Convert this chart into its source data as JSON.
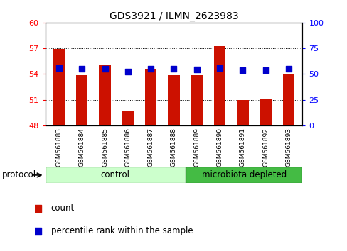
{
  "title": "GDS3921 / ILMN_2623983",
  "samples": [
    "GSM561883",
    "GSM561884",
    "GSM561885",
    "GSM561886",
    "GSM561887",
    "GSM561888",
    "GSM561889",
    "GSM561890",
    "GSM561891",
    "GSM561892",
    "GSM561893"
  ],
  "count_values": [
    56.9,
    53.9,
    55.1,
    49.7,
    54.6,
    53.9,
    53.9,
    57.3,
    51.0,
    51.1,
    54.0
  ],
  "percentile_values": [
    55.5,
    55.0,
    55.3,
    52.5,
    55.4,
    54.8,
    54.7,
    55.8,
    53.5,
    53.5,
    55.3
  ],
  "ylim_left": [
    48,
    60
  ],
  "ylim_right": [
    0,
    100
  ],
  "yticks_left": [
    48,
    51,
    54,
    57,
    60
  ],
  "yticks_right": [
    0,
    25,
    50,
    75,
    100
  ],
  "bar_color": "#cc1100",
  "dot_color": "#0000cc",
  "control_color": "#ccffcc",
  "depleted_color": "#44bb44",
  "n_control": 6,
  "n_depleted": 5,
  "background_color": "#ffffff",
  "xtick_bg_color": "#dddddd",
  "control_label": "control",
  "depleted_label": "microbiota depleted",
  "protocol_label": "protocol",
  "legend_count": "count",
  "legend_pct": "percentile rank within the sample",
  "bar_width": 0.5,
  "dot_size": 28
}
